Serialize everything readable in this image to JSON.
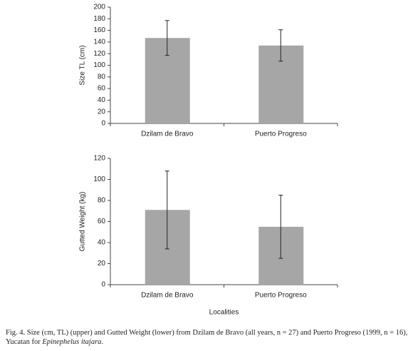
{
  "chart_data": [
    {
      "type": "bar",
      "ylabel": "Size TL  (cm)",
      "categories": [
        "Dzilam de Bravo",
        "Puerto Progreso"
      ],
      "values": [
        147,
        134
      ],
      "errors": [
        30,
        27
      ],
      "color": "#a6a6a6",
      "ylim": [
        0,
        200
      ],
      "yticks": [
        0,
        20,
        40,
        60,
        80,
        100,
        120,
        140,
        160,
        180,
        200
      ]
    },
    {
      "type": "bar",
      "ylabel": "Gutted Weight (kg)",
      "xlabel": "Localities",
      "categories": [
        "Dzilam de Bravo",
        "Puerto Progreso"
      ],
      "values": [
        71,
        55
      ],
      "errors": [
        37,
        30
      ],
      "color": "#a6a6a6",
      "ylim": [
        0,
        120
      ],
      "yticks": [
        0,
        20,
        40,
        60,
        80,
        100,
        120
      ]
    }
  ],
  "caption": {
    "text": "Fig. 4. Size (cm, TL) (upper) and Gutted Weight (lower) from Dzilam de Bravo (all years, n = 27) and Puerto Progreso (1999, n = 16), Yucatan for ",
    "italic": "Epinephelus itajara",
    "end": "."
  }
}
